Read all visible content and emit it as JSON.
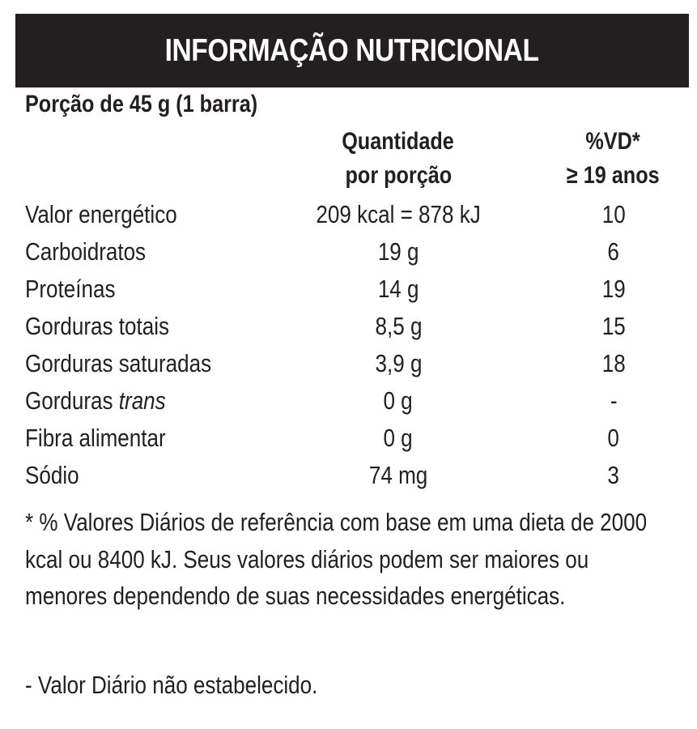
{
  "header": {
    "title": "INFORMAÇÃO NUTRICIONAL"
  },
  "portion": "Porção de 45 g (1 barra)",
  "columns": {
    "quantity_line1": "Quantidade",
    "quantity_line2": "por porção",
    "vd_line1": "%VD*",
    "vd_line2": "≥ 19 anos"
  },
  "rows": [
    {
      "label": "Valor energético",
      "label_italic": "",
      "quantity": "209 kcal = 878 kJ",
      "vd": "10"
    },
    {
      "label": "Carboidratos",
      "label_italic": "",
      "quantity": "19 g",
      "vd": "6"
    },
    {
      "label": "Proteínas",
      "label_italic": "",
      "quantity": "14 g",
      "vd": "19"
    },
    {
      "label": "Gorduras totais",
      "label_italic": "",
      "quantity": "8,5 g",
      "vd": "15"
    },
    {
      "label": "Gorduras saturadas",
      "label_italic": "",
      "quantity": "3,9 g",
      "vd": "18"
    },
    {
      "label": "Gorduras ",
      "label_italic": "trans",
      "quantity": "0 g",
      "vd": "-"
    },
    {
      "label": "Fibra alimentar",
      "label_italic": "",
      "quantity": "0 g",
      "vd": "0"
    },
    {
      "label": "Sódio",
      "label_italic": "",
      "quantity": "74 mg",
      "vd": "3"
    }
  ],
  "footnote": "* % Valores Diários de referência com base em uma dieta de 2000 kcal ou 8400 kJ. Seus valores diários podem ser maiores ou menores dependendo de suas necessidades energéticas.",
  "footnote2": "- Valor Diário não estabelecido."
}
